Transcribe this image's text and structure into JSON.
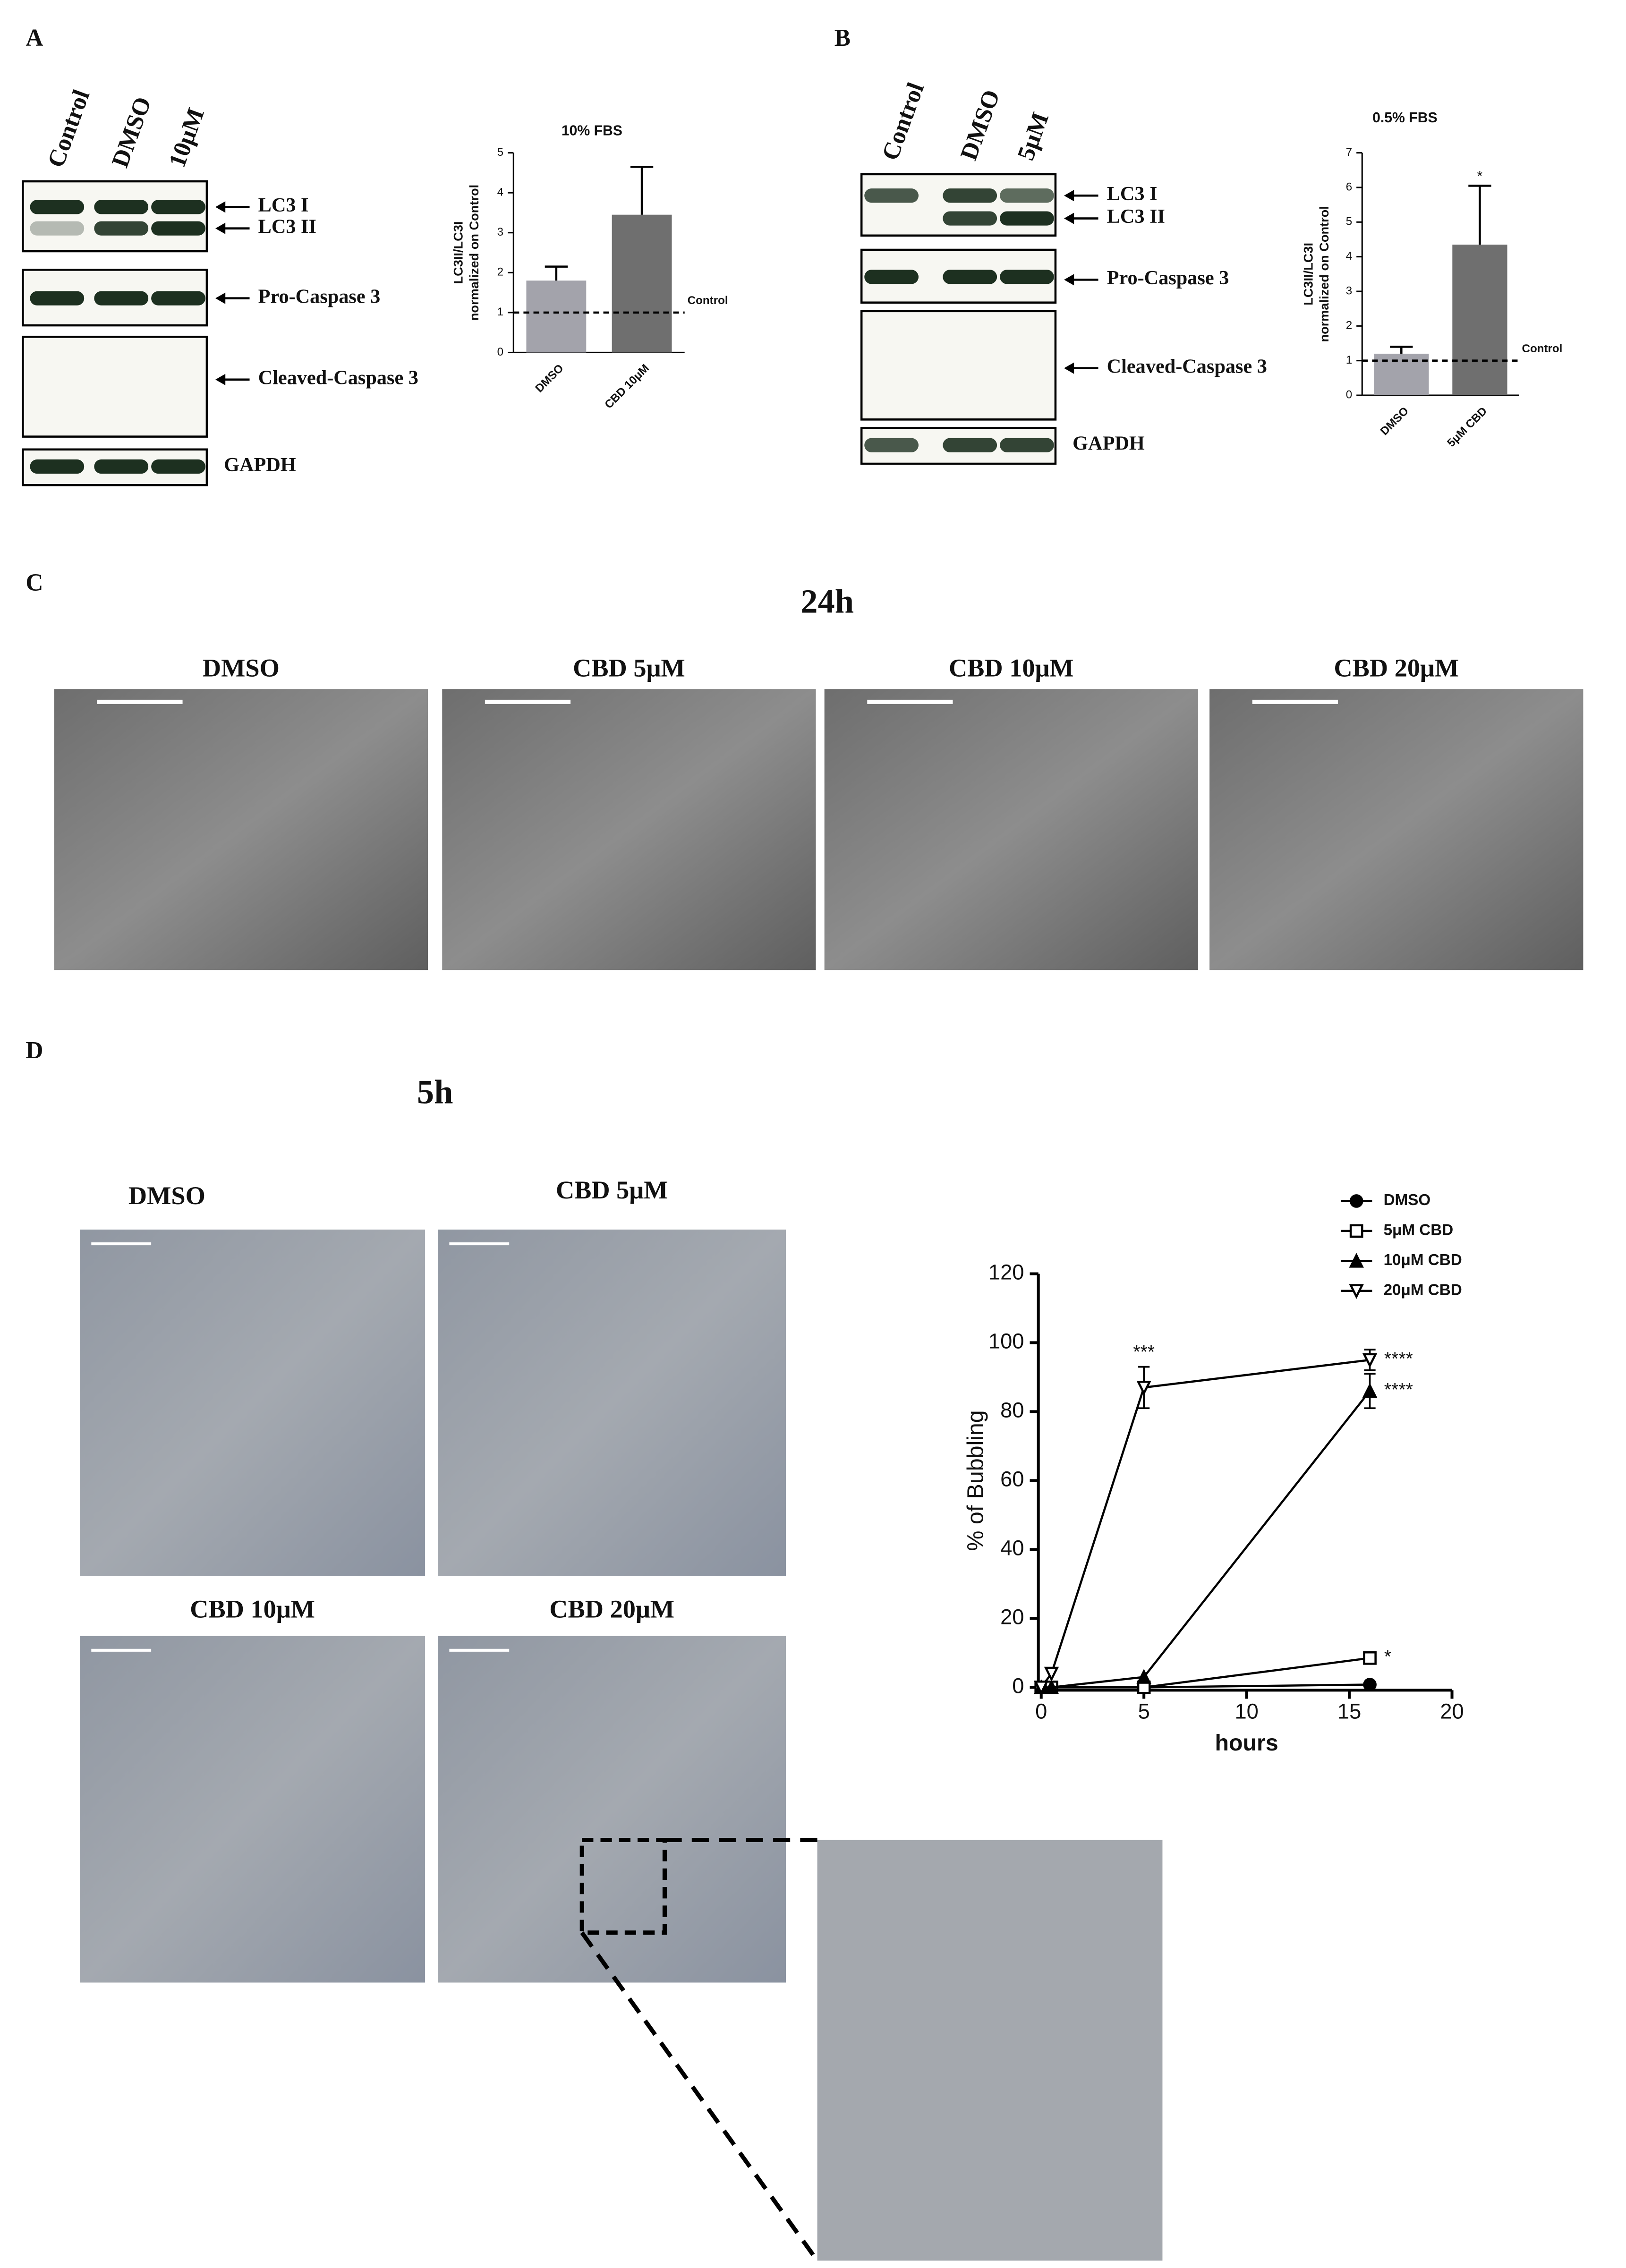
{
  "panel_labels": [
    "A",
    "B",
    "C",
    "D"
  ],
  "blots": [
    {
      "lanes": [
        "Control",
        "DMSO",
        "10μM"
      ],
      "bands": [
        "LC3 I",
        "LC3 II",
        "Pro-Caspase 3",
        "Cleaved-Caspase 3",
        "GAPDH"
      ]
    },
    {
      "lanes": [
        "Control",
        "DMSO",
        "5μM"
      ],
      "bands": [
        "LC3 I",
        "LC3 II",
        "Pro-Caspase 3",
        "Cleaved-Caspase 3",
        "GAPDH"
      ]
    }
  ],
  "panel_c": {
    "time": "24h",
    "images": [
      "DMSO",
      "CBD 5μM",
      "CBD 10μM",
      "CBD 20μM"
    ]
  },
  "panel_d": {
    "time": "5h",
    "images": [
      "DMSO",
      "CBD 5μM",
      "CBD 10μM",
      "CBD 20μM"
    ]
  },
  "chart_data": [
    {
      "type": "bar",
      "title": "10% FBS",
      "y_label": [
        "LC3II/LC3I",
        "normalized on Control"
      ],
      "categories": [
        "DMSO",
        "CBD 10μM"
      ],
      "values": [
        1.8,
        3.45
      ],
      "errors": [
        0.35,
        1.2
      ],
      "colors": [
        "#a3a3ab",
        "#6f6f6f"
      ],
      "ylim": [
        0,
        5
      ],
      "yticks": [
        0,
        1,
        2,
        3,
        4,
        5
      ],
      "reference": {
        "value": 1,
        "label": "Control"
      }
    },
    {
      "type": "bar",
      "title": "0.5% FBS",
      "y_label": [
        "LC3II/LC3I",
        "normalized on Control"
      ],
      "categories": [
        "DMSO",
        "5μM CBD"
      ],
      "values": [
        1.2,
        4.35
      ],
      "errors": [
        0.2,
        1.7
      ],
      "significance": [
        null,
        "*"
      ],
      "colors": [
        "#a3a3ab",
        "#6f6f6f"
      ],
      "ylim": [
        0,
        7
      ],
      "yticks": [
        0,
        1,
        2,
        3,
        4,
        5,
        6,
        7
      ],
      "reference": {
        "value": 1,
        "label": "Control"
      }
    },
    {
      "type": "line",
      "x_label": "hours",
      "y_label": "% of Bubbling",
      "x": [
        0,
        0.5,
        5,
        16
      ],
      "series": [
        {
          "name": "DMSO",
          "marker": "circle",
          "color": "#000000",
          "values": [
            0,
            0,
            0,
            0.8
          ],
          "errors": [
            null,
            null,
            null,
            null
          ],
          "significance": [
            null,
            null,
            null,
            null
          ]
        },
        {
          "name": "5μM CBD",
          "marker": "square-open",
          "color": "#000000",
          "values": [
            0,
            0,
            0,
            8.5
          ],
          "errors": [
            null,
            null,
            null,
            null
          ],
          "significance": [
            null,
            null,
            null,
            "*"
          ]
        },
        {
          "name": "10μM CBD",
          "marker": "triangle",
          "color": "#000000",
          "values": [
            0,
            0,
            3,
            86
          ],
          "errors": [
            null,
            null,
            null,
            5
          ],
          "significance": [
            null,
            null,
            null,
            "****"
          ]
        },
        {
          "name": "20μM CBD",
          "marker": "triangle-down-open",
          "color": "#000000",
          "values": [
            0,
            4,
            87,
            95
          ],
          "errors": [
            null,
            null,
            6,
            3
          ],
          "significance": [
            null,
            null,
            "***",
            "****"
          ]
        }
      ],
      "xlim": [
        0,
        20
      ],
      "xticks": [
        0,
        5,
        10,
        15,
        20
      ],
      "ylim": [
        0,
        120
      ],
      "yticks": [
        0,
        20,
        40,
        60,
        80,
        100,
        120
      ]
    }
  ]
}
